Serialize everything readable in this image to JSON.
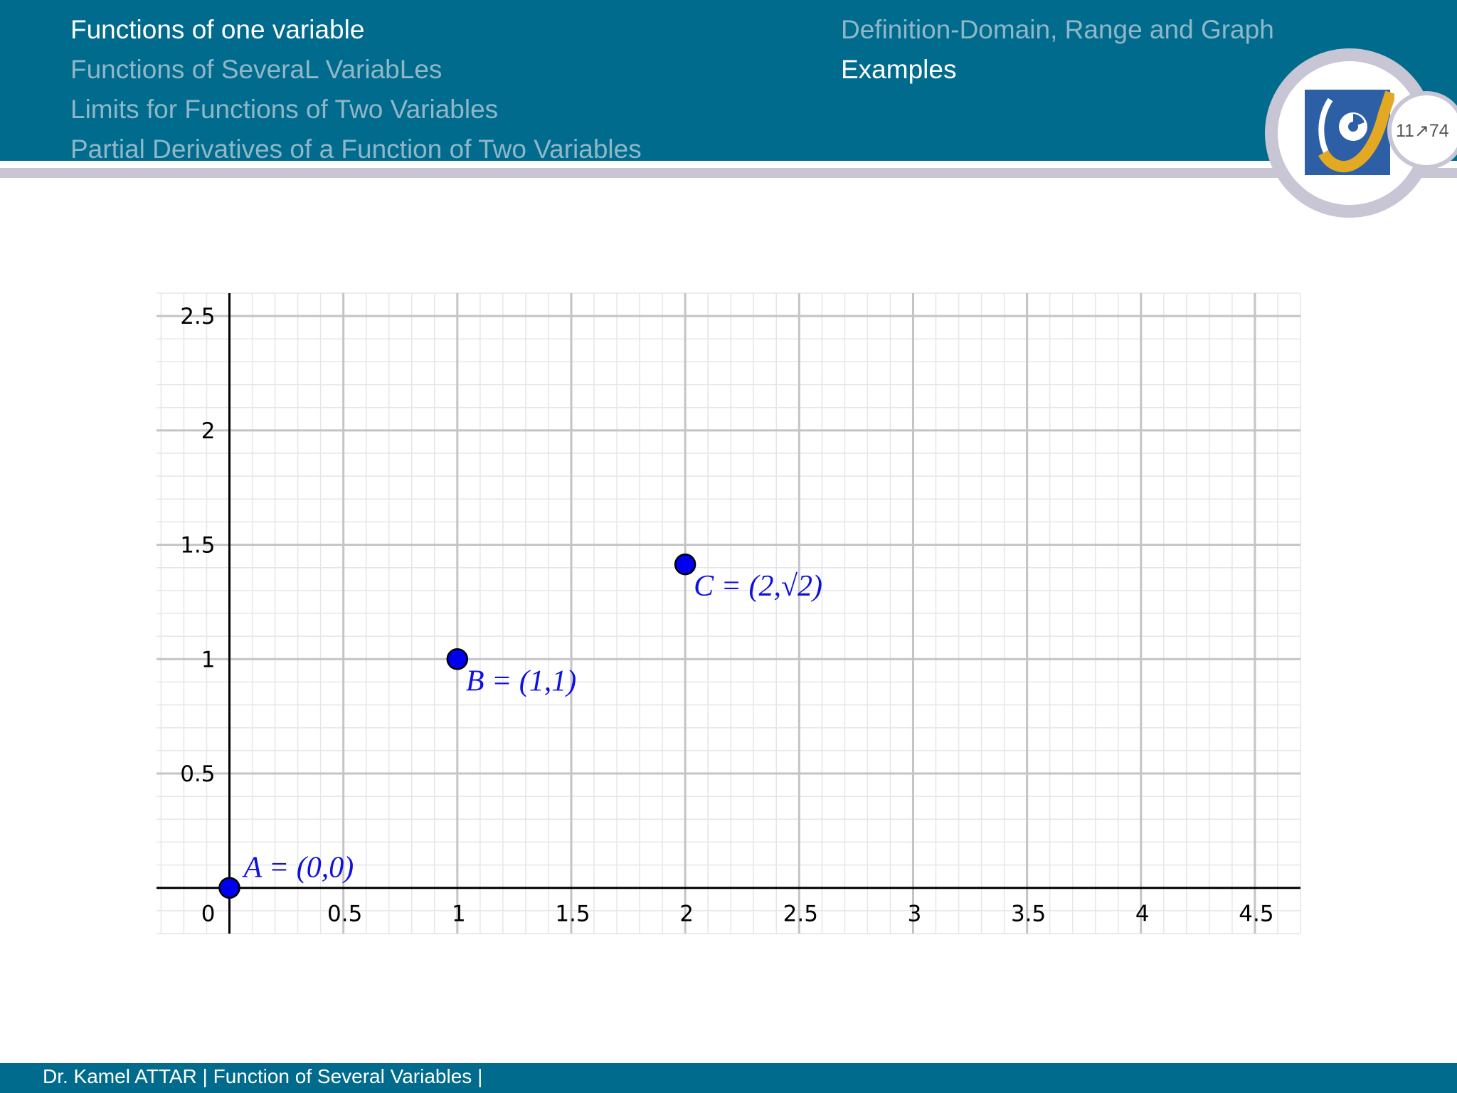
{
  "header": {
    "sections": [
      {
        "label": "Functions of one variable",
        "active": true
      },
      {
        "label": "Functions of SeveraL VariabLes",
        "active": false
      },
      {
        "label": "Limits for Functions of Two Variables",
        "active": false
      },
      {
        "label": "Partial Derivatives of a Function of Two Variables",
        "active": false
      }
    ],
    "subsections": [
      {
        "label": "Definition-Domain, Range and Graph",
        "active": false
      },
      {
        "label": "Examples",
        "active": true
      }
    ],
    "page_indicator": "11↗74",
    "colors": {
      "bar": "#006b8c",
      "accent_ring": "#c8c6d4",
      "active_text": "#ffffff",
      "inactive_text": "#8fb7c7"
    }
  },
  "logo": {
    "icon": "university-logo-icon"
  },
  "chart_data": {
    "type": "scatter",
    "xlim": [
      -0.32,
      4.7
    ],
    "ylim": [
      -0.2,
      2.6
    ],
    "grid": true,
    "x_ticks": [
      "0",
      "0.5",
      "1",
      "1.5",
      "2",
      "2.5",
      "3",
      "3.5",
      "4",
      "4.5"
    ],
    "y_ticks": [
      "0.5",
      "1",
      "1.5",
      "2",
      "2.5"
    ],
    "points": [
      {
        "label": "A = (0,0)",
        "x": 0,
        "y": 0
      },
      {
        "label": "B = (1,1)",
        "x": 1,
        "y": 1
      },
      {
        "label": "C = (2,√2)",
        "x": 2,
        "y": 1.4142
      }
    ],
    "point_color": "#0000ee"
  },
  "footer": {
    "text": "Dr. Kamel ATTAR | Function of Several Variables |"
  }
}
